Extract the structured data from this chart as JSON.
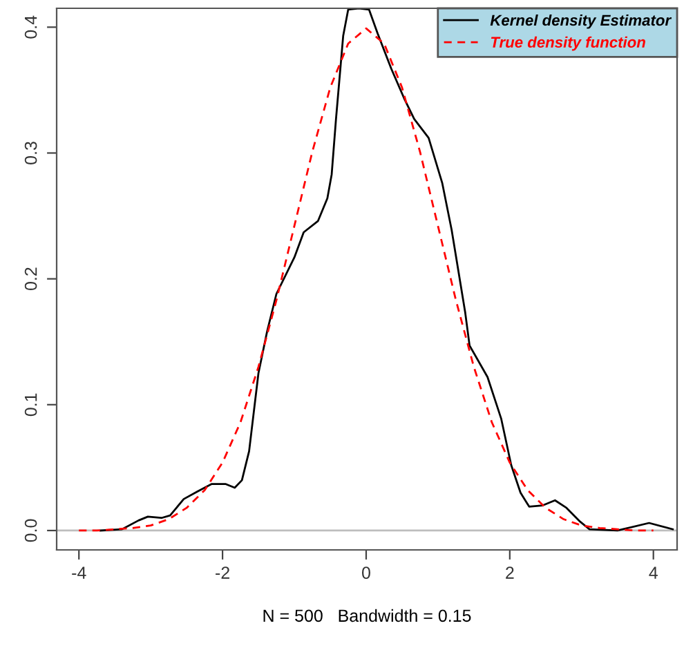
{
  "chart_data": {
    "type": "line",
    "xlabel": "N = 500   Bandwidth = 0.15",
    "xlim": [
      -4.31,
      4.33
    ],
    "ylim": [
      -0.0154,
      0.415
    ],
    "xticks": [
      -4,
      -2,
      0,
      2,
      4
    ],
    "yticks": [
      {
        "value": 0,
        "label": "0.0"
      },
      0.1,
      0.2,
      0.3,
      0.4
    ],
    "grid": false,
    "legend": "top right",
    "ref_lines": [
      {
        "axis": "y",
        "value": 0,
        "color": "#bebebe"
      }
    ],
    "series": [
      {
        "name": "Kernel density Estimator",
        "color": "#000000",
        "line_style": "solid",
        "x": [
          -3.7,
          -3.4,
          -3.17,
          -3.04,
          -2.85,
          -2.73,
          -2.54,
          -2.35,
          -2.15,
          -1.96,
          -1.83,
          -1.73,
          -1.63,
          -1.5,
          -1.38,
          -1.25,
          -1.0,
          -0.87,
          -0.67,
          -0.54,
          -0.48,
          -0.42,
          -0.32,
          -0.25,
          -0.1,
          0.04,
          0.16,
          0.35,
          0.54,
          0.67,
          0.87,
          1.06,
          1.19,
          1.38,
          1.44,
          1.69,
          1.88,
          2.02,
          2.15,
          2.27,
          2.46,
          2.63,
          2.79,
          2.98,
          3.11,
          3.5,
          3.94,
          4.27
        ],
        "values": [
          0.0,
          0.001,
          0.008,
          0.011,
          0.01,
          0.012,
          0.025,
          0.031,
          0.037,
          0.037,
          0.034,
          0.04,
          0.063,
          0.125,
          0.158,
          0.188,
          0.217,
          0.237,
          0.246,
          0.264,
          0.283,
          0.327,
          0.393,
          0.414,
          0.415,
          0.414,
          0.395,
          0.367,
          0.342,
          0.327,
          0.312,
          0.276,
          0.239,
          0.173,
          0.147,
          0.122,
          0.089,
          0.052,
          0.03,
          0.019,
          0.02,
          0.024,
          0.018,
          0.007,
          0.001,
          0.0,
          0.006,
          0.001
        ]
      },
      {
        "name": "True density function",
        "color": "#ff0000",
        "line_style": "dashed",
        "x": [
          -4,
          -3.75,
          -3.5,
          -3.25,
          -3,
          -2.75,
          -2.5,
          -2.25,
          -2,
          -1.75,
          -1.5,
          -1.25,
          -1,
          -0.75,
          -0.5,
          -0.25,
          0,
          0.25,
          0.5,
          0.75,
          1,
          1.25,
          1.5,
          1.75,
          2,
          2.25,
          2.5,
          2.75,
          3,
          3.25,
          3.5,
          3.75,
          4
        ],
        "values": [
          0.0,
          0.0,
          0.001,
          0.002,
          0.004,
          0.009,
          0.018,
          0.032,
          0.054,
          0.086,
          0.13,
          0.183,
          0.242,
          0.301,
          0.352,
          0.387,
          0.399,
          0.387,
          0.352,
          0.301,
          0.242,
          0.183,
          0.13,
          0.086,
          0.054,
          0.032,
          0.018,
          0.009,
          0.004,
          0.002,
          0.001,
          0.0,
          0.0
        ]
      }
    ]
  }
}
